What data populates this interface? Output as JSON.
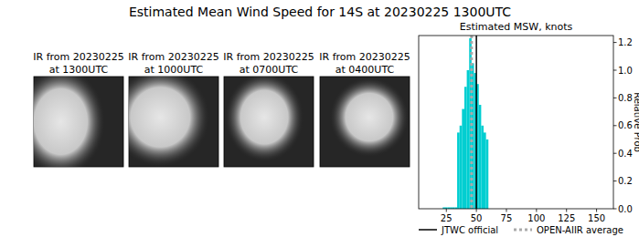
{
  "chart_data": {
    "type": "histogram",
    "title": "Estimated Mean Wind Speed for 14S at 20230225 1300UTC",
    "subtitle": "Estimated MSW, knots",
    "y_label": "Relative Prob",
    "panels": [
      {
        "title": [
          "IR from 20230225",
          "at 1300UTC"
        ]
      },
      {
        "title": [
          "IR from 20230225",
          "at 1000UTC"
        ]
      },
      {
        "title": [
          "IR from 20230225",
          "at 0700UTC"
        ]
      },
      {
        "title": [
          "IR from 20230225",
          "at 0400UTC"
        ]
      }
    ],
    "bins": [
      22,
      24,
      26,
      28,
      30,
      32,
      34,
      36,
      38,
      40,
      42,
      44,
      46,
      48,
      50,
      52,
      54,
      56,
      58,
      60
    ],
    "values": [
      0.01,
      0.01,
      0.01,
      0.01,
      0.01,
      0.01,
      0.55,
      0.6,
      0.72,
      0.88,
      1.0,
      1.23,
      1.05,
      0.98,
      0.9,
      0.75,
      0.6,
      0.55,
      0.5
    ],
    "color": "#00ced1",
    "reference_lines": [
      {
        "name": "JTWC official",
        "value": 50,
        "color": "#000000",
        "line_style": "solid"
      },
      {
        "name": "OPEN-AIIR average",
        "value": 46,
        "color": "#aaaaaa",
        "line_style": "dotted"
      }
    ],
    "xlim": [
      2,
      164
    ],
    "ylim": [
      0,
      1.25
    ],
    "xticks": [
      25,
      50,
      75,
      100,
      125,
      150
    ],
    "yticks": [
      {
        "value": 0,
        "label": "0.0"
      },
      0.2,
      0.4,
      0.6,
      0.8,
      {
        "value": 1,
        "label": "1.0"
      },
      1.2
    ],
    "grid": false
  }
}
